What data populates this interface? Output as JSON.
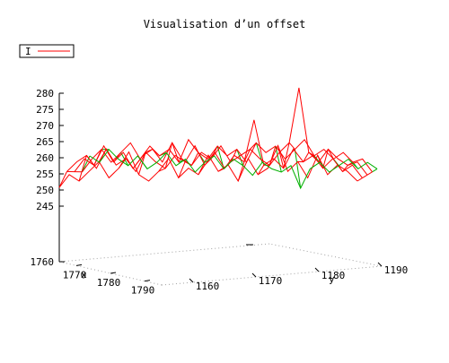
{
  "chart_data": {
    "type": "surface-wireframe",
    "title": "Visualisation d’un offset",
    "legend": {
      "entries": [
        {
          "label": "I",
          "color": "#ff0000"
        }
      ],
      "placement": "top-left"
    },
    "axes": {
      "x": {
        "label": "x",
        "ticks": [
          "1770",
          "1780",
          "1790"
        ],
        "range": [
          1765,
          1795
        ]
      },
      "y": {
        "label": "y",
        "ticks": [
          "1160",
          "1170",
          "1180",
          "1190"
        ],
        "range": [
          1155,
          1190
        ]
      },
      "z": {
        "label": "",
        "ticks": [
          "245",
          "250",
          "255",
          "260",
          "265",
          "270",
          "275",
          "280"
        ],
        "base_tick": "1760",
        "range": [
          240,
          280
        ]
      }
    },
    "colors": {
      "top_surface": "#ff0000",
      "bottom_surface": "#00b000",
      "frame": "#000000",
      "base_grid": "#a0a0a0"
    },
    "grid": true,
    "series": [
      {
        "values": [
          253,
          257,
          255,
          258,
          261,
          256,
          259,
          264,
          257,
          255,
          258,
          262,
          256,
          259,
          257,
          263,
          258,
          260,
          255,
          262,
          257,
          259,
          266,
          258,
          261,
          256,
          263,
          257,
          260,
          258,
          255
        ]
      },
      {
        "values": [
          256,
          259,
          261,
          257,
          263,
          258,
          260,
          256,
          262,
          259,
          257,
          261,
          259,
          264,
          258,
          262,
          257,
          261,
          259,
          272,
          258,
          260,
          257,
          263,
          259,
          261,
          257,
          260,
          256,
          258,
          254
        ]
      },
      {
        "values": [
          254,
          258,
          256,
          262,
          257,
          260,
          255,
          259,
          261,
          257,
          263,
          258,
          256,
          260,
          258,
          262,
          257,
          259,
          261,
          258,
          256,
          260,
          263,
          280,
          260,
          257,
          261,
          258,
          256,
          257,
          253
        ]
      },
      {
        "values": [
          252,
          256,
          259,
          255,
          258,
          261,
          256,
          260,
          257,
          259,
          255,
          262,
          258,
          256,
          260,
          257,
          259,
          255,
          261,
          258,
          260,
          256,
          259,
          262,
          257,
          259,
          256,
          258,
          255,
          256,
          252
        ]
      },
      {
        "values": [
          255,
          253,
          257,
          254,
          252,
          255,
          251,
          253,
          256,
          252,
          254,
          250,
          253,
          255,
          251,
          254,
          252,
          249,
          253,
          251,
          250,
          252,
          245,
          251,
          253,
          250,
          252,
          254,
          251,
          253,
          251
        ]
      }
    ]
  }
}
